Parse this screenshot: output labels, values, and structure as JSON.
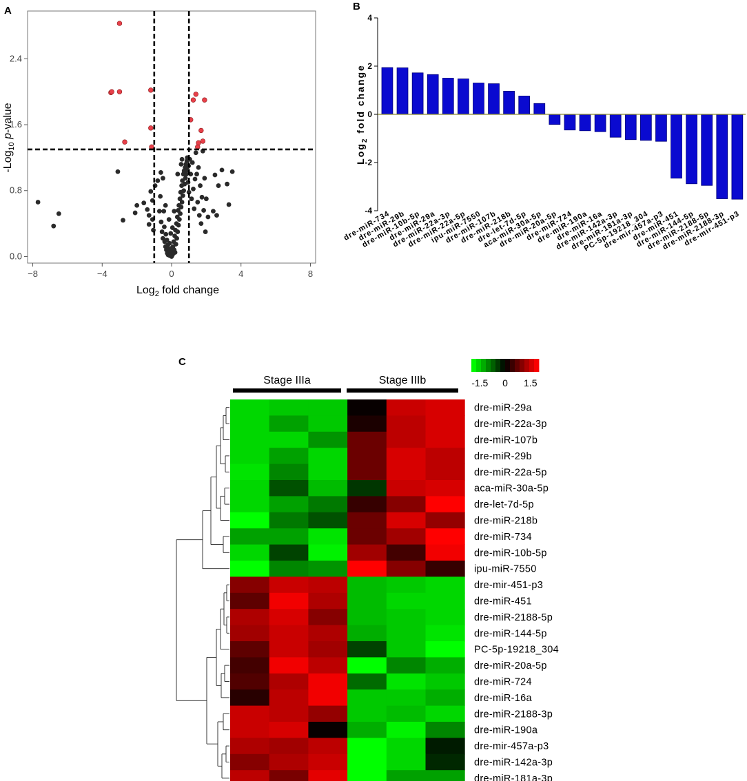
{
  "panels": {
    "a": "A",
    "b": "B",
    "c": "C"
  },
  "colors": {
    "sig": "#e8404a",
    "nonsig": "#2a2a2a",
    "bar": "#0a0ad0",
    "green": "#00ff00",
    "black": "#000000",
    "red": "#ff0000"
  },
  "chart_data": [
    {
      "type": "scatter",
      "panel": "A",
      "title": "",
      "xlabel": "Log2 fold change",
      "ylabel": "-Log10 p-value",
      "xlim": [
        -8.3,
        8.3
      ],
      "ylim": [
        -0.08,
        2.98
      ],
      "xticks": [
        -8,
        -4,
        0,
        4,
        8
      ],
      "yticks": [
        0.0,
        0.8,
        1.6,
        2.4
      ],
      "xtick_labels": [
        "−8",
        "−4",
        "0",
        "4",
        "8"
      ],
      "ytick_labels": [
        "0.0",
        "0.8",
        "1.6",
        "2.4"
      ],
      "thresholds": {
        "x": [
          -1,
          1
        ],
        "y": 1.3
      },
      "significant_points": [
        [
          -3.0,
          2.83
        ],
        [
          -3.5,
          1.99
        ],
        [
          -3.45,
          2.0
        ],
        [
          -3.0,
          2.0
        ],
        [
          -1.2,
          2.02
        ],
        [
          -2.7,
          1.39
        ],
        [
          -1.2,
          1.56
        ],
        [
          -1.15,
          1.33
        ],
        [
          1.4,
          1.97
        ],
        [
          1.25,
          1.9
        ],
        [
          1.9,
          1.9
        ],
        [
          1.1,
          1.66
        ],
        [
          1.7,
          1.53
        ],
        [
          1.8,
          1.4
        ],
        [
          1.5,
          1.33
        ],
        [
          1.55,
          1.38
        ]
      ],
      "nonsig_points": [
        [
          -7.7,
          0.66
        ],
        [
          -6.5,
          0.52
        ],
        [
          -6.8,
          0.37
        ],
        [
          -3.1,
          1.03
        ],
        [
          -2.8,
          0.44
        ],
        [
          -2.1,
          0.53
        ],
        [
          -2.0,
          0.62
        ],
        [
          -1.6,
          0.65
        ],
        [
          -1.4,
          0.57
        ],
        [
          -1.3,
          0.5
        ],
        [
          -1.3,
          0.39
        ],
        [
          -1.2,
          0.79
        ],
        [
          -1.1,
          0.68
        ],
        [
          -1.1,
          0.45
        ],
        [
          -1.05,
          0.32
        ],
        [
          -0.95,
          0.86
        ],
        [
          -0.8,
          0.92
        ],
        [
          -0.7,
          0.55
        ],
        [
          -0.65,
          0.73
        ],
        [
          -0.6,
          0.42
        ],
        [
          -0.55,
          0.3
        ],
        [
          -0.5,
          0.22
        ],
        [
          -0.45,
          0.55
        ],
        [
          -0.42,
          0.36
        ],
        [
          -0.4,
          0.18
        ],
        [
          -0.35,
          0.12
        ],
        [
          -0.33,
          0.27
        ],
        [
          -0.3,
          0.08
        ],
        [
          -0.27,
          0.2
        ],
        [
          -0.25,
          0.04
        ],
        [
          -0.22,
          0.14
        ],
        [
          -0.2,
          0.02
        ],
        [
          -0.18,
          0.09
        ],
        [
          -0.15,
          0.05
        ],
        [
          -0.12,
          0.16
        ],
        [
          -0.1,
          0.01
        ],
        [
          -0.08,
          0.07
        ],
        [
          -0.05,
          0.03
        ],
        [
          -0.02,
          0.1
        ],
        [
          0.0,
          0.0
        ],
        [
          0.02,
          0.06
        ],
        [
          0.05,
          0.02
        ],
        [
          0.08,
          0.12
        ],
        [
          0.1,
          0.04
        ],
        [
          0.12,
          0.18
        ],
        [
          0.15,
          0.08
        ],
        [
          0.18,
          0.25
        ],
        [
          0.2,
          0.05
        ],
        [
          0.22,
          0.32
        ],
        [
          0.25,
          0.15
        ],
        [
          0.28,
          0.4
        ],
        [
          0.3,
          0.22
        ],
        [
          0.33,
          0.48
        ],
        [
          0.35,
          0.3
        ],
        [
          0.38,
          0.56
        ],
        [
          0.4,
          0.38
        ],
        [
          0.42,
          0.62
        ],
        [
          0.45,
          0.45
        ],
        [
          0.48,
          0.7
        ],
        [
          0.5,
          0.52
        ],
        [
          0.52,
          0.78
        ],
        [
          0.55,
          0.6
        ],
        [
          0.58,
          0.86
        ],
        [
          0.6,
          0.66
        ],
        [
          0.62,
          0.92
        ],
        [
          0.65,
          0.74
        ],
        [
          0.68,
          1.0
        ],
        [
          0.7,
          0.8
        ],
        [
          0.72,
          1.04
        ],
        [
          0.75,
          0.88
        ],
        [
          0.78,
          1.08
        ],
        [
          0.8,
          0.95
        ],
        [
          0.82,
          1.12
        ],
        [
          0.85,
          1.0
        ],
        [
          0.88,
          1.16
        ],
        [
          0.9,
          1.2
        ],
        [
          0.92,
          1.05
        ],
        [
          0.95,
          0.9
        ],
        [
          0.98,
          1.1
        ],
        [
          1.0,
          0.78
        ],
        [
          1.05,
          1.18
        ],
        [
          1.1,
          1.0
        ],
        [
          1.15,
          0.7
        ],
        [
          1.2,
          1.14
        ],
        [
          1.25,
          0.82
        ],
        [
          1.3,
          0.58
        ],
        [
          1.35,
          0.94
        ],
        [
          1.4,
          1.26
        ],
        [
          1.45,
          1.0
        ],
        [
          1.5,
          0.66
        ],
        [
          1.55,
          1.08
        ],
        [
          1.6,
          0.5
        ],
        [
          1.65,
          0.86
        ],
        [
          1.7,
          0.4
        ],
        [
          1.75,
          0.72
        ],
        [
          1.8,
          1.28
        ],
        [
          1.85,
          0.56
        ],
        [
          1.9,
          0.95
        ],
        [
          1.95,
          0.3
        ],
        [
          2.0,
          0.7
        ],
        [
          2.1,
          0.48
        ],
        [
          2.4,
          0.55
        ],
        [
          2.5,
          0.99
        ],
        [
          2.6,
          0.5
        ],
        [
          2.7,
          0.86
        ],
        [
          2.9,
          1.05
        ],
        [
          3.2,
          0.88
        ],
        [
          3.3,
          0.63
        ],
        [
          3.5,
          1.03
        ],
        [
          -0.35,
          0.62
        ],
        [
          -0.5,
          0.95
        ],
        [
          -0.62,
          1.02
        ],
        [
          0.35,
          1.0
        ],
        [
          0.55,
          1.12
        ],
        [
          0.6,
          1.18
        ],
        [
          0.15,
          0.55
        ],
        [
          -0.15,
          0.45
        ],
        [
          0.05,
          0.35
        ],
        [
          -0.05,
          0.28
        ]
      ]
    },
    {
      "type": "bar",
      "panel": "B",
      "title": "",
      "xlabel": "",
      "ylabel": "Log2 fold change",
      "ylim": [
        -4,
        4
      ],
      "yticks": [
        -4,
        -2,
        0,
        2,
        4
      ],
      "ytick_labels": [
        "-4",
        "-2",
        "0",
        "2",
        "4"
      ],
      "categories": [
        "dre-miR-734",
        "dre-miR-29b",
        "dre-miR-10b-5p",
        "dre-miR-29a",
        "dre-miR-22a-3p",
        "dre-miR-22a-5p",
        "ipu-miR-7550",
        "dre-miR-107b",
        "dre-miR-218b",
        "dre-let-7d-5p",
        "aca-miR-30a-5p",
        "dre-miR-20a-5p",
        "dre-miR-724",
        "dre-miR-190a",
        "dre-miR-16a",
        "dre-miR-142a-3p",
        "dre-miR-181a-3p",
        "PC-5p-19218_304",
        "dre-mir-457a-p3",
        "dre-miR-451",
        "dre-miR-144-5p",
        "dre-miR-2188-5p",
        "dre-miR-2188-3p",
        "dre-mir-451-p3"
      ],
      "values": [
        1.94,
        1.93,
        1.72,
        1.65,
        1.5,
        1.47,
        1.3,
        1.27,
        0.96,
        0.76,
        0.45,
        -0.42,
        -0.65,
        -0.68,
        -0.72,
        -0.95,
        -1.05,
        -1.08,
        -1.12,
        -2.65,
        -2.88,
        -2.95,
        -3.5,
        -3.52
      ]
    },
    {
      "type": "heatmap",
      "panel": "C",
      "title": "",
      "groups": [
        "Stage IIIa",
        "Stage IIIb"
      ],
      "legend_ticks": [
        "-1.5",
        "0",
        "1.5"
      ],
      "legend_range": [
        -2,
        2
      ],
      "rows": [
        "dre-miR-29a",
        "dre-miR-22a-3p",
        "dre-miR-107b",
        "dre-miR-29b",
        "dre-miR-22a-5p",
        "aca-miR-30a-5p",
        "dre-let-7d-5p",
        "dre-miR-218b",
        "dre-miR-734",
        "dre-miR-10b-5p",
        "ipu-miR-7550",
        "dre-mir-451-p3",
        "dre-miR-451",
        "dre-miR-2188-5p",
        "dre-miR-144-5p",
        "PC-5p-19218_304",
        "dre-miR-20a-5p",
        "dre-miR-724",
        "dre-miR-16a",
        "dre-miR-2188-3p",
        "dre-miR-190a",
        "dre-mir-457a-p3",
        "dre-miR-142a-3p",
        "dre-miR-181a-3p"
      ],
      "values": [
        [
          -1.6,
          -1.5,
          -1.5,
          0.05,
          1.5,
          1.6
        ],
        [
          -1.6,
          -1.2,
          -1.5,
          0.2,
          1.4,
          1.6
        ],
        [
          -1.6,
          -1.6,
          -1.1,
          0.8,
          1.4,
          1.6
        ],
        [
          -1.6,
          -1.2,
          -1.6,
          0.8,
          1.6,
          1.4
        ],
        [
          -1.7,
          -1.0,
          -1.6,
          0.8,
          1.6,
          1.4
        ],
        [
          -1.6,
          -0.6,
          -1.4,
          -0.4,
          1.5,
          1.6
        ],
        [
          -1.6,
          -1.2,
          -0.9,
          0.4,
          1.0,
          1.9
        ],
        [
          -1.9,
          -0.9,
          -0.6,
          0.8,
          1.6,
          1.1
        ],
        [
          -1.2,
          -1.2,
          -1.7,
          0.8,
          1.2,
          1.9
        ],
        [
          -1.6,
          -0.5,
          -1.8,
          1.2,
          0.5,
          1.8
        ],
        [
          -1.9,
          -1.0,
          -1.1,
          1.9,
          1.0,
          0.4
        ],
        [
          1.0,
          1.5,
          1.4,
          -1.4,
          -1.5,
          -1.6
        ],
        [
          0.7,
          1.8,
          1.3,
          -1.4,
          -1.6,
          -1.6
        ],
        [
          1.3,
          1.6,
          1.0,
          -1.4,
          -1.5,
          -1.6
        ],
        [
          1.2,
          1.5,
          1.3,
          -1.3,
          -1.5,
          -1.7
        ],
        [
          0.7,
          1.5,
          1.2,
          -0.5,
          -1.5,
          -1.9
        ],
        [
          0.5,
          1.8,
          1.4,
          -1.9,
          -1.0,
          -1.3
        ],
        [
          0.6,
          1.3,
          1.8,
          -0.8,
          -1.7,
          -1.5
        ],
        [
          0.3,
          1.4,
          1.8,
          -1.5,
          -1.5,
          -1.3
        ],
        [
          1.5,
          1.4,
          1.1,
          -1.5,
          -1.4,
          -1.6
        ],
        [
          1.5,
          1.6,
          0.05,
          -1.3,
          -1.8,
          -1.0
        ],
        [
          1.3,
          1.2,
          1.4,
          -1.9,
          -1.6,
          -0.2
        ],
        [
          1.0,
          1.3,
          1.5,
          -1.9,
          -1.6,
          -0.3
        ],
        [
          1.4,
          0.9,
          1.7,
          -1.9,
          -1.2,
          -1.2
        ]
      ]
    }
  ]
}
